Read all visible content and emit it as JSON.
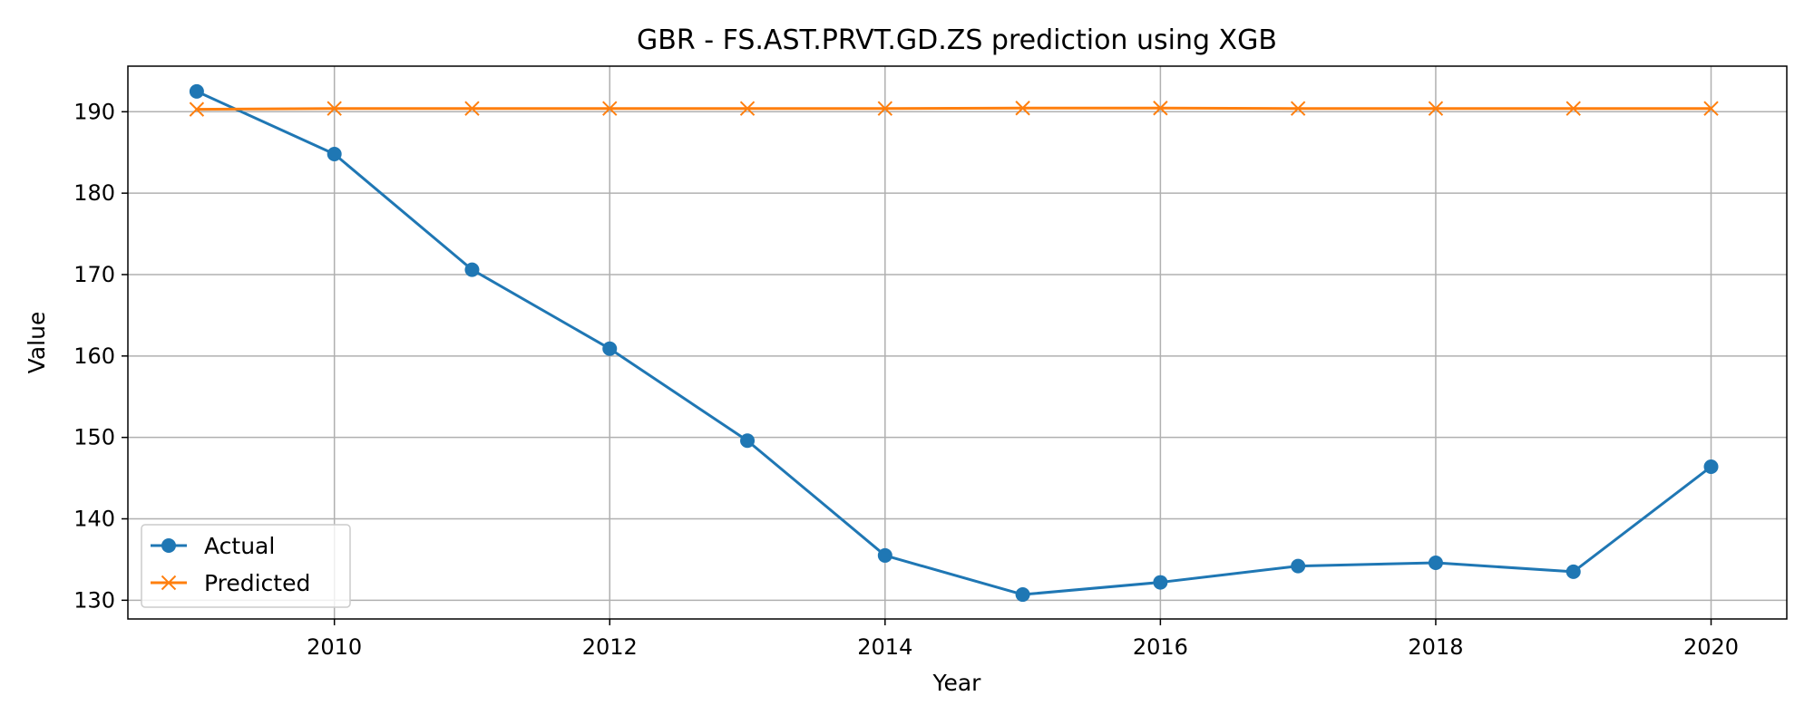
{
  "chart_data": {
    "type": "line",
    "title": "GBR - FS.AST.PRVT.GD.ZS prediction using XGB",
    "xlabel": "Year",
    "ylabel": "Value",
    "xlim": [
      2008.5,
      2020.55
    ],
    "ylim": [
      127.7,
      195.6
    ],
    "xticks": [
      2010,
      2012,
      2014,
      2016,
      2018,
      2020
    ],
    "yticks": [
      130,
      140,
      150,
      160,
      170,
      180,
      190
    ],
    "grid": true,
    "legend_position": "lower-left",
    "x": [
      2009,
      2010,
      2011,
      2012,
      2013,
      2014,
      2015,
      2016,
      2017,
      2018,
      2019,
      2020
    ],
    "series": [
      {
        "name": "Actual",
        "color": "#1f77b4",
        "marker": "circle",
        "values": [
          192.5,
          184.8,
          170.6,
          160.9,
          149.6,
          135.5,
          130.7,
          132.2,
          134.2,
          134.6,
          133.5,
          146.4
        ]
      },
      {
        "name": "Predicted",
        "color": "#ff7f0e",
        "marker": "x",
        "values": [
          190.3,
          190.4,
          190.4,
          190.4,
          190.4,
          190.4,
          190.45,
          190.45,
          190.4,
          190.4,
          190.4,
          190.4
        ]
      }
    ]
  }
}
